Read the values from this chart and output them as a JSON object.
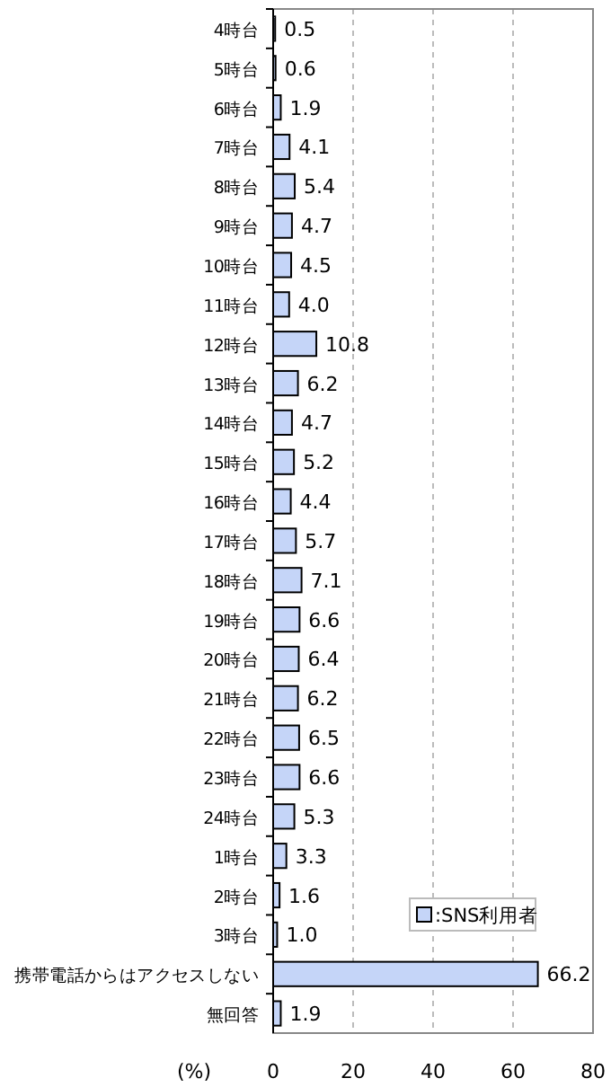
{
  "chart_data": {
    "type": "bar",
    "orientation": "horizontal",
    "xlabel": "(%)",
    "categories": [
      "4時台",
      "5時台",
      "6時台",
      "7時台",
      "8時台",
      "9時台",
      "10時台",
      "11時台",
      "12時台",
      "13時台",
      "14時台",
      "15時台",
      "16時台",
      "17時台",
      "18時台",
      "19時台",
      "20時台",
      "21時台",
      "22時台",
      "23時台",
      "24時台",
      "1時台",
      "2時台",
      "3時台",
      "携帯電話からはアクセスしない",
      "無回答"
    ],
    "series": [
      {
        "name": ":SNS利用者",
        "color": "#c5d5f8",
        "values": [
          0.5,
          0.6,
          1.9,
          4.1,
          5.4,
          4.7,
          4.5,
          4.0,
          10.8,
          6.2,
          4.7,
          5.2,
          4.4,
          5.7,
          7.1,
          6.6,
          6.4,
          6.2,
          6.5,
          6.6,
          5.3,
          3.3,
          1.6,
          1.0,
          66.2,
          1.9
        ],
        "value_labels": [
          "0.5",
          "0.6",
          "1.9",
          "4.1",
          "5.4",
          "4.7",
          "4.5",
          "4.0",
          "10.8",
          "6.2",
          "4.7",
          "5.2",
          "4.4",
          "5.7",
          "7.1",
          "6.6",
          "6.4",
          "6.2",
          "6.5",
          "6.6",
          "5.3",
          "3.3",
          "1.6",
          "1.0",
          "66.2",
          "1.9"
        ]
      }
    ],
    "xlim": [
      0,
      80
    ],
    "xticks": [
      0,
      20,
      40,
      60,
      80
    ],
    "grid": "x",
    "legend": "bottom right"
  }
}
